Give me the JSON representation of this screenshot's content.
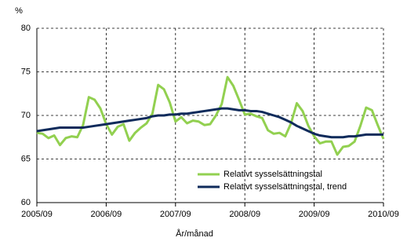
{
  "chart_data": {
    "type": "line",
    "y_unit": "%",
    "xlabel": "År/månad",
    "categories": [
      "2005/09",
      null,
      null,
      null,
      null,
      null,
      null,
      null,
      null,
      null,
      null,
      null,
      "2006/09",
      null,
      null,
      null,
      null,
      null,
      null,
      null,
      null,
      null,
      null,
      null,
      "2007/09",
      null,
      null,
      null,
      null,
      null,
      null,
      null,
      null,
      null,
      null,
      null,
      "2008/09",
      null,
      null,
      null,
      null,
      null,
      null,
      null,
      null,
      null,
      null,
      null,
      "2009/09",
      null,
      null,
      null,
      null,
      null,
      null,
      null,
      null,
      null,
      null,
      null,
      "2010/09"
    ],
    "series": [
      {
        "name": "Relativt sysselsättningstal",
        "color": "#92d050",
        "values": [
          68.0,
          67.9,
          67.4,
          67.7,
          66.6,
          67.4,
          67.6,
          67.5,
          68.9,
          72.1,
          71.8,
          70.8,
          69.0,
          67.8,
          68.7,
          69.0,
          67.1,
          68.0,
          68.6,
          69.1,
          70.2,
          73.5,
          73.0,
          71.5,
          69.3,
          69.8,
          69.1,
          69.4,
          69.3,
          68.9,
          69.0,
          70.0,
          71.3,
          74.4,
          73.4,
          71.8,
          70.1,
          70.2,
          69.9,
          69.7,
          68.3,
          67.9,
          68.0,
          67.6,
          69.1,
          71.4,
          70.5,
          68.8,
          67.6,
          66.8,
          67.0,
          67.0,
          65.5,
          66.4,
          66.5,
          67.0,
          68.8,
          70.9,
          70.6,
          68.9,
          67.3
        ]
      },
      {
        "name": "Relativt sysselsättningstal, trend",
        "color": "#0f2b5b",
        "values": [
          68.2,
          68.3,
          68.4,
          68.5,
          68.6,
          68.6,
          68.6,
          68.6,
          68.6,
          68.7,
          68.8,
          68.9,
          69.0,
          69.1,
          69.2,
          69.3,
          69.4,
          69.5,
          69.6,
          69.7,
          69.9,
          70.0,
          70.0,
          70.1,
          70.1,
          70.2,
          70.2,
          70.3,
          70.4,
          70.5,
          70.6,
          70.7,
          70.8,
          70.8,
          70.7,
          70.6,
          70.6,
          70.5,
          70.5,
          70.4,
          70.2,
          70.0,
          69.8,
          69.5,
          69.2,
          68.8,
          68.5,
          68.2,
          67.9,
          67.7,
          67.6,
          67.5,
          67.5,
          67.5,
          67.6,
          67.6,
          67.7,
          67.8,
          67.8,
          67.8,
          67.8
        ]
      }
    ],
    "ylim": [
      60,
      80
    ],
    "yticks": [
      60,
      65,
      70,
      75,
      80
    ],
    "grid": true,
    "legend": "lower right"
  }
}
